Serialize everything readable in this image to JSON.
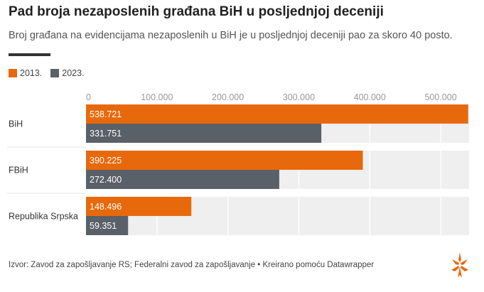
{
  "header": {
    "title": "Pad broja nezaposlenih građana BiH u posljednjoj deceniji",
    "subtitle": "Broj građana na evidencijama nezaposlenih u BiH je u posljednjoj deceniji pao za skoro 40 posto."
  },
  "legend": [
    {
      "label": "2013.",
      "color": "#e8690c"
    },
    {
      "label": "2023.",
      "color": "#5a6068"
    }
  ],
  "footer": {
    "source": "Izvor: Zavod za zapošljavanje RS; Federalni zavod za zapošljavanje • Kreirano pomoću Datawrapper"
  },
  "logo": {
    "icon": "rfe-rl-fire-icon",
    "color": "#e8690c"
  },
  "chart_data": {
    "type": "bar",
    "orientation": "horizontal",
    "title": "",
    "xlabel": "",
    "ylabel": "",
    "xlim": [
      0,
      540000
    ],
    "grid": true,
    "legend_position": "top-left",
    "x_ticks": [
      0,
      100000,
      200000,
      300000,
      400000,
      500000
    ],
    "x_tick_labels": [
      "0",
      "100.000",
      "200.000",
      "300.000",
      "400.000",
      "500.000"
    ],
    "categories": [
      "BiH",
      "FBiH",
      "Republika Srpska"
    ],
    "series": [
      {
        "name": "2013.",
        "color": "#e8690c",
        "values": [
          538721,
          390225,
          148496
        ],
        "labels": [
          "538.721",
          "390.225",
          "148.496"
        ]
      },
      {
        "name": "2023.",
        "color": "#5a6068",
        "values": [
          331751,
          272400,
          59351
        ],
        "labels": [
          "331.751",
          "272.400",
          "59.351"
        ]
      }
    ]
  }
}
